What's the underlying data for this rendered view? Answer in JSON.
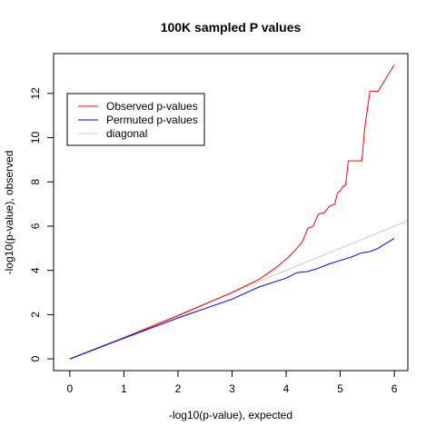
{
  "chart_data": {
    "type": "line",
    "title": "100K sampled P values",
    "xlabel": "-log10(p-value), expected",
    "ylabel": "-log10(p-value), observed",
    "xlim": [
      -0.3,
      6.25
    ],
    "ylim": [
      -0.53,
      13.8
    ],
    "xticks": [
      0,
      1,
      2,
      3,
      4,
      5,
      6
    ],
    "yticks": [
      0,
      2,
      4,
      6,
      8,
      10,
      12
    ],
    "legend_position": "top-left",
    "series": [
      {
        "name": "Observed p-values",
        "color": "#ff0000",
        "x": [
          0,
          1,
          2,
          3,
          3.5,
          3.8,
          4.0,
          4.1,
          4.2,
          4.3,
          4.35,
          4.4,
          4.5,
          4.55,
          4.6,
          4.7,
          4.8,
          4.85,
          4.9,
          4.95,
          5.0,
          5.05,
          5.1,
          5.15,
          5.4,
          5.45,
          5.55,
          5.7,
          6.0
        ],
        "y": [
          0,
          0.95,
          1.95,
          3.0,
          3.6,
          4.1,
          4.5,
          4.75,
          5.0,
          5.3,
          5.6,
          5.9,
          6.0,
          6.3,
          6.55,
          6.6,
          6.9,
          6.95,
          7.0,
          7.5,
          7.6,
          7.8,
          7.85,
          8.95,
          8.95,
          10.4,
          12.1,
          12.1,
          13.3
        ]
      },
      {
        "name": "Permuted p-values",
        "color": "#0000ff",
        "x": [
          0,
          1,
          2,
          3,
          3.5,
          4.0,
          4.2,
          4.4,
          4.6,
          4.8,
          5.0,
          5.2,
          5.4,
          5.55,
          5.7,
          6.0
        ],
        "y": [
          0,
          0.93,
          1.85,
          2.7,
          3.25,
          3.65,
          3.9,
          3.95,
          4.1,
          4.3,
          4.45,
          4.6,
          4.8,
          4.85,
          5.0,
          5.45
        ]
      },
      {
        "name": "diagonal",
        "color": "#cccccc",
        "x": [
          0,
          6.25
        ],
        "y": [
          0,
          6.25
        ]
      }
    ]
  }
}
